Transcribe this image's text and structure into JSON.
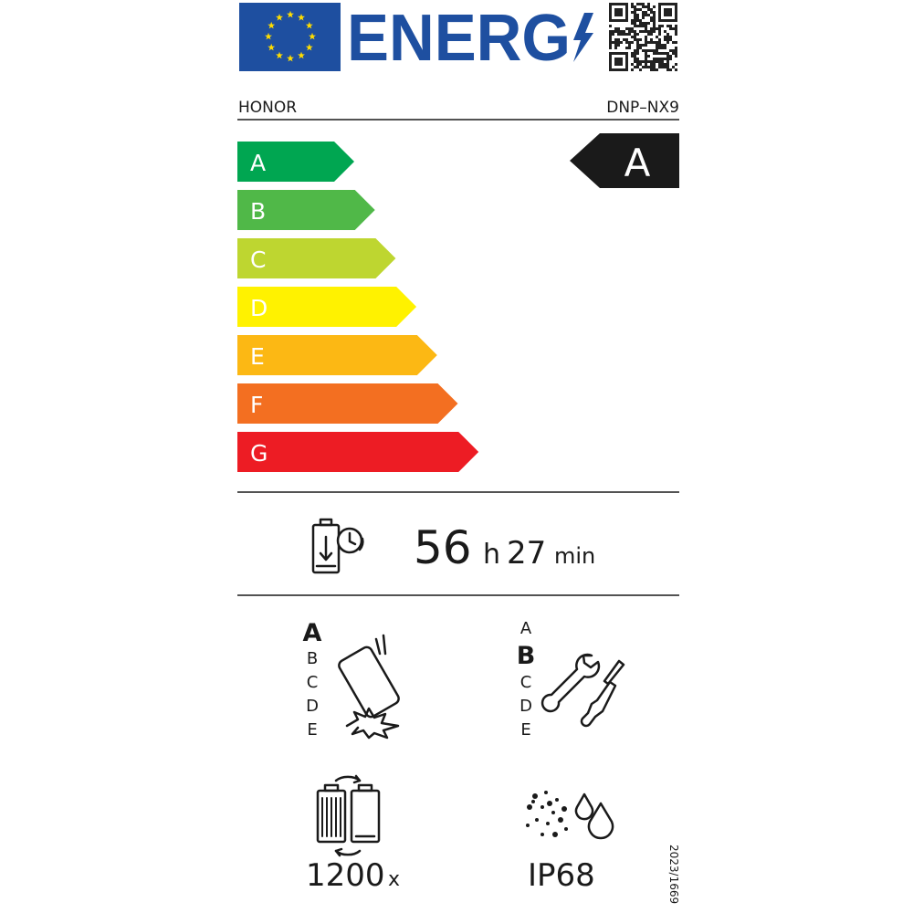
{
  "header": {
    "energy_word": "ENERG",
    "brand": "HONOR",
    "model": "DNP–NX9"
  },
  "energy_scale": {
    "classes": [
      {
        "label": "A",
        "color": "#00a651"
      },
      {
        "label": "B",
        "color": "#50b848"
      },
      {
        "label": "C",
        "color": "#bed630"
      },
      {
        "label": "D",
        "color": "#fff200"
      },
      {
        "label": "E",
        "color": "#fcb814"
      },
      {
        "label": "F",
        "color": "#f36f21"
      },
      {
        "label": "G",
        "color": "#ed1c24"
      }
    ],
    "rating": "A"
  },
  "battery_endurance": {
    "hours": "56",
    "hours_unit": "h",
    "minutes": "27",
    "minutes_unit": "min"
  },
  "drop_scale": {
    "classes": [
      {
        "label": "A",
        "selected": true
      },
      {
        "label": "B",
        "selected": false
      },
      {
        "label": "C",
        "selected": false
      },
      {
        "label": "D",
        "selected": false
      },
      {
        "label": "E",
        "selected": false
      }
    ]
  },
  "repair_scale": {
    "classes": [
      {
        "label": "A",
        "selected": false
      },
      {
        "label": "B",
        "selected": true
      },
      {
        "label": "C",
        "selected": false
      },
      {
        "label": "D",
        "selected": false
      },
      {
        "label": "E",
        "selected": false
      }
    ]
  },
  "battery_cycles": {
    "count": "1200",
    "unit": "x"
  },
  "ingress_protection": "IP68",
  "regulation": "2023/1669"
}
